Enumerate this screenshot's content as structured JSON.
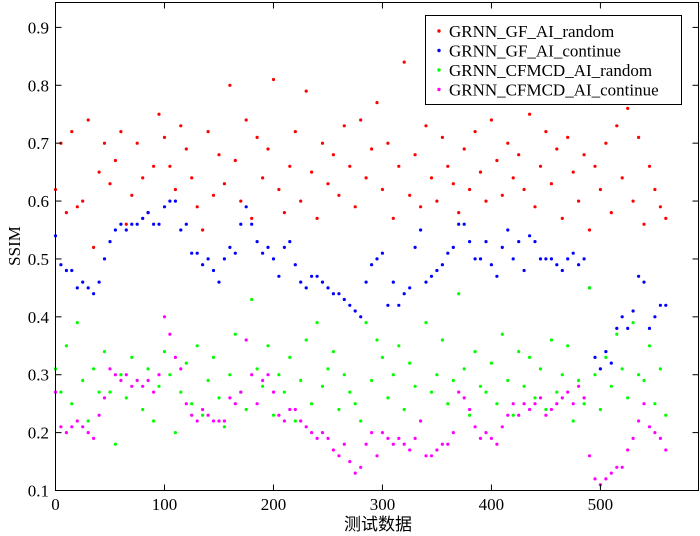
{
  "chart_data": {
    "type": "scatter",
    "title": "",
    "xlabel": "测试数据",
    "ylabel": "SSIM",
    "xlim": [
      0,
      590
    ],
    "ylim": [
      0.1,
      0.943
    ],
    "xticks": [
      0,
      100,
      200,
      300,
      400,
      500
    ],
    "yticks": [
      0.1,
      0.2,
      0.3,
      0.4,
      0.5,
      0.6,
      0.7,
      0.8,
      0.9
    ],
    "ytick_labels": [
      "0.1",
      "0.2",
      "0.3",
      "0.4",
      "0.5",
      "0.6",
      "0.7",
      "0.8",
      "0.9"
    ],
    "xtick_labels": [
      "0",
      "100",
      "200",
      "300",
      "400",
      "500"
    ],
    "grid": false,
    "legend_position": "top-right",
    "x_start": 0,
    "x_step": 5,
    "series": [
      {
        "name": "GRNN_GF_AI_random",
        "color": "#ff0000",
        "values": [
          0.62,
          0.7,
          0.58,
          0.72,
          0.59,
          0.6,
          0.74,
          0.52,
          0.65,
          0.7,
          0.63,
          0.67,
          0.72,
          0.56,
          0.61,
          0.7,
          0.64,
          0.58,
          0.66,
          0.75,
          0.71,
          0.66,
          0.62,
          0.73,
          0.69,
          0.64,
          0.59,
          0.55,
          0.72,
          0.61,
          0.68,
          0.63,
          0.8,
          0.67,
          0.6,
          0.74,
          0.57,
          0.71,
          0.64,
          0.69,
          0.81,
          0.62,
          0.58,
          0.66,
          0.72,
          0.6,
          0.79,
          0.65,
          0.57,
          0.7,
          0.63,
          0.68,
          0.61,
          0.73,
          0.66,
          0.59,
          0.74,
          0.64,
          0.69,
          0.77,
          0.62,
          0.7,
          0.57,
          0.66,
          0.84,
          0.61,
          0.68,
          0.59,
          0.73,
          0.64,
          0.6,
          0.71,
          0.66,
          0.63,
          0.58,
          0.69,
          0.62,
          0.72,
          0.65,
          0.6,
          0.74,
          0.67,
          0.61,
          0.7,
          0.64,
          0.68,
          0.62,
          0.75,
          0.59,
          0.66,
          0.72,
          0.63,
          0.69,
          0.57,
          0.71,
          0.65,
          0.6,
          0.68,
          0.55,
          0.66,
          0.62,
          0.7,
          0.58,
          0.73,
          0.64,
          0.76,
          0.6,
          0.71,
          0.56,
          0.66,
          0.62,
          0.59,
          0.57
        ]
      },
      {
        "name": "GRNN_GF_AI_continue",
        "color": "#0000ff",
        "values": [
          0.54,
          0.49,
          0.48,
          0.48,
          0.45,
          0.46,
          0.45,
          0.44,
          0.46,
          0.5,
          0.53,
          0.55,
          0.56,
          0.55,
          0.56,
          0.56,
          0.57,
          0.58,
          0.56,
          0.56,
          0.59,
          0.6,
          0.6,
          0.55,
          0.56,
          0.51,
          0.51,
          0.49,
          0.5,
          0.48,
          0.46,
          0.5,
          0.52,
          0.51,
          0.56,
          0.59,
          0.56,
          0.53,
          0.51,
          0.52,
          0.5,
          0.47,
          0.52,
          0.53,
          0.49,
          0.46,
          0.45,
          0.47,
          0.47,
          0.46,
          0.45,
          0.44,
          0.44,
          0.43,
          0.42,
          0.41,
          0.4,
          0.46,
          0.49,
          0.5,
          0.51,
          0.42,
          0.46,
          0.42,
          0.44,
          0.45,
          0.52,
          0.55,
          0.46,
          0.47,
          0.48,
          0.49,
          0.51,
          0.52,
          0.56,
          0.56,
          0.53,
          0.5,
          0.5,
          0.53,
          0.49,
          0.47,
          0.52,
          0.55,
          0.5,
          0.53,
          0.48,
          0.54,
          0.53,
          0.5,
          0.5,
          0.5,
          0.49,
          0.48,
          0.5,
          0.51,
          0.49,
          0.5,
          0.45,
          0.33,
          0.31,
          0.34,
          0.32,
          0.38,
          0.4,
          0.38,
          0.41,
          0.47,
          0.46,
          0.38,
          0.4,
          0.42,
          0.42
        ]
      },
      {
        "name": "GRNN_CFMCD_AI_random",
        "color": "#00ff00",
        "values": [
          0.31,
          0.27,
          0.35,
          0.25,
          0.39,
          0.29,
          0.22,
          0.31,
          0.27,
          0.34,
          0.27,
          0.18,
          0.3,
          0.26,
          0.33,
          0.29,
          0.24,
          0.31,
          0.22,
          0.28,
          0.34,
          0.3,
          0.2,
          0.27,
          0.32,
          0.25,
          0.35,
          0.23,
          0.29,
          0.33,
          0.26,
          0.21,
          0.3,
          0.37,
          0.27,
          0.24,
          0.43,
          0.31,
          0.28,
          0.35,
          0.23,
          0.3,
          0.27,
          0.33,
          0.22,
          0.29,
          0.36,
          0.25,
          0.39,
          0.28,
          0.31,
          0.34,
          0.24,
          0.3,
          0.27,
          0.25,
          0.22,
          0.39,
          0.29,
          0.36,
          0.33,
          0.26,
          0.3,
          0.35,
          0.24,
          0.32,
          0.28,
          0.22,
          0.39,
          0.27,
          0.3,
          0.36,
          0.25,
          0.29,
          0.44,
          0.31,
          0.23,
          0.34,
          0.28,
          0.27,
          0.32,
          0.25,
          0.37,
          0.29,
          0.23,
          0.34,
          0.28,
          0.33,
          0.26,
          0.31,
          0.24,
          0.36,
          0.27,
          0.3,
          0.35,
          0.22,
          0.29,
          0.25,
          0.45,
          0.3,
          0.24,
          0.33,
          0.28,
          0.37,
          0.31,
          0.26,
          0.39,
          0.3,
          0.29,
          0.35,
          0.25,
          0.31,
          0.23
        ]
      },
      {
        "name": "GRNN_CFMCD_AI_continue",
        "color": "#ff00ff",
        "values": [
          0.27,
          0.21,
          0.2,
          0.21,
          0.22,
          0.21,
          0.2,
          0.19,
          0.23,
          0.26,
          0.31,
          0.3,
          0.29,
          0.3,
          0.28,
          0.29,
          0.28,
          0.29,
          0.27,
          0.3,
          0.4,
          0.37,
          0.33,
          0.31,
          0.25,
          0.23,
          0.22,
          0.24,
          0.23,
          0.22,
          0.22,
          0.22,
          0.26,
          0.25,
          0.27,
          0.36,
          0.3,
          0.25,
          0.29,
          0.3,
          0.27,
          0.23,
          0.22,
          0.24,
          0.24,
          0.22,
          0.21,
          0.2,
          0.19,
          0.2,
          0.19,
          0.17,
          0.16,
          0.18,
          0.15,
          0.13,
          0.14,
          0.18,
          0.2,
          0.16,
          0.2,
          0.19,
          0.18,
          0.19,
          0.18,
          0.17,
          0.19,
          0.22,
          0.16,
          0.16,
          0.17,
          0.18,
          0.18,
          0.2,
          0.27,
          0.26,
          0.24,
          0.21,
          0.19,
          0.2,
          0.19,
          0.18,
          0.21,
          0.23,
          0.25,
          0.23,
          0.25,
          0.24,
          0.25,
          0.26,
          0.23,
          0.24,
          0.25,
          0.26,
          0.27,
          0.25,
          0.28,
          0.26,
          0.16,
          0.12,
          0.11,
          0.12,
          0.13,
          0.14,
          0.14,
          0.17,
          0.19,
          0.22,
          0.25,
          0.21,
          0.2,
          0.19,
          0.17
        ]
      }
    ]
  }
}
